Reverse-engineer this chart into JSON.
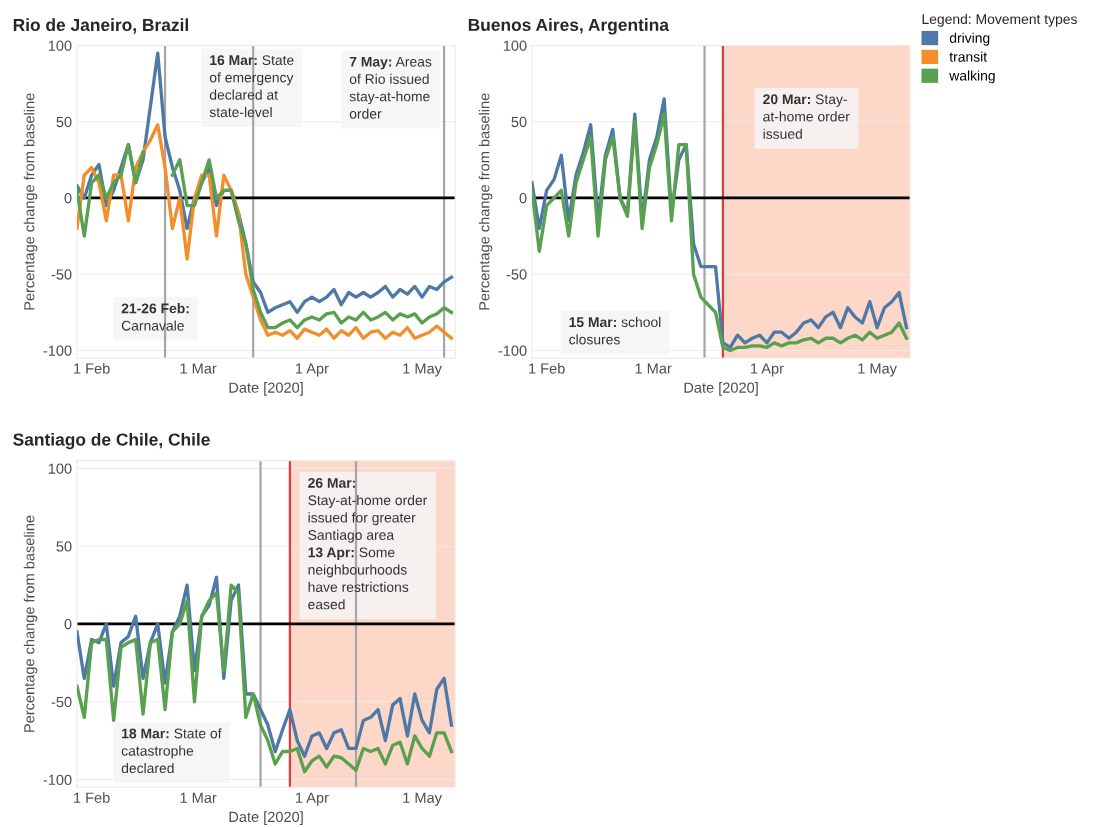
{
  "chart_data": [
    {
      "type": "line",
      "title": "Rio de Janeiro, Brazil",
      "xlabel": "Date [2020]",
      "ylabel": "Percentage change from baseline",
      "x": [
        "2020-01-28",
        "2020-01-30",
        "2020-02-01",
        "2020-02-03",
        "2020-02-05",
        "2020-02-07",
        "2020-02-09",
        "2020-02-11",
        "2020-02-13",
        "2020-02-15",
        "2020-02-17",
        "2020-02-19",
        "2020-02-21",
        "2020-02-23",
        "2020-02-25",
        "2020-02-27",
        "2020-02-29",
        "2020-03-02",
        "2020-03-04",
        "2020-03-06",
        "2020-03-08",
        "2020-03-10",
        "2020-03-12",
        "2020-03-14",
        "2020-03-16",
        "2020-03-18",
        "2020-03-20",
        "2020-03-22",
        "2020-03-24",
        "2020-03-26",
        "2020-03-28",
        "2020-03-30",
        "2020-04-01",
        "2020-04-03",
        "2020-04-05",
        "2020-04-07",
        "2020-04-09",
        "2020-04-11",
        "2020-04-13",
        "2020-04-15",
        "2020-04-17",
        "2020-04-19",
        "2020-04-21",
        "2020-04-23",
        "2020-04-25",
        "2020-04-27",
        "2020-04-29",
        "2020-05-01",
        "2020-05-03",
        "2020-05-05",
        "2020-05-07",
        "2020-05-09"
      ],
      "series": [
        {
          "name": "driving",
          "color": "#4e79a7",
          "values": [
            8,
            0,
            15,
            22,
            -5,
            5,
            20,
            35,
            10,
            25,
            60,
            95,
            40,
            20,
            5,
            -20,
            0,
            10,
            20,
            -5,
            5,
            5,
            -10,
            -30,
            -55,
            -62,
            -75,
            -72,
            -70,
            -68,
            -75,
            -68,
            -65,
            -68,
            -65,
            -60,
            -70,
            -62,
            -65,
            -62,
            -65,
            -62,
            -58,
            -65,
            -60,
            -63,
            -58,
            -65,
            -58,
            -60,
            -55,
            -52
          ]
        },
        {
          "name": "transit",
          "color": "#f28e2b",
          "values": [
            -20,
            15,
            20,
            10,
            -15,
            15,
            15,
            -15,
            20,
            30,
            38,
            48,
            20,
            -20,
            0,
            -40,
            0,
            15,
            15,
            -25,
            15,
            5,
            -10,
            -50,
            -65,
            -80,
            -90,
            -88,
            -90,
            -87,
            -92,
            -86,
            -88,
            -90,
            -86,
            -92,
            -87,
            -90,
            -85,
            -92,
            -88,
            -87,
            -92,
            -88,
            -90,
            -85,
            -92,
            -90,
            -88,
            -84,
            -88,
            -92
          ]
        },
        {
          "name": "walking",
          "color": "#59a14f",
          "values": [
            5,
            -25,
            10,
            15,
            0,
            10,
            15,
            35,
            10,
            30,
            null,
            null,
            null,
            15,
            25,
            -5,
            -5,
            10,
            25,
            0,
            5,
            5,
            -15,
            -30,
            -60,
            -75,
            -85,
            -85,
            -82,
            -80,
            -85,
            -80,
            -78,
            -80,
            -76,
            -75,
            -82,
            -78,
            -80,
            -75,
            -80,
            -78,
            -75,
            -80,
            -76,
            -78,
            -76,
            -82,
            -78,
            -76,
            -72,
            -75
          ]
        }
      ],
      "xlim": [
        "2020-01-28",
        "2020-05-10"
      ],
      "xticks": [
        {
          "value": "2020-02-01",
          "label": "1 Feb"
        },
        {
          "value": "2020-03-01",
          "label": "1 Mar"
        },
        {
          "value": "2020-04-01",
          "label": "1 Apr"
        },
        {
          "value": "2020-05-01",
          "label": "1 May"
        }
      ],
      "ylim": [
        -105,
        100
      ],
      "yticks": [
        -100,
        -50,
        0,
        50,
        100
      ],
      "grid": "y",
      "ref_lines": [
        {
          "axis": "x",
          "value": "2020-02-21",
          "color": "#a6a6a6"
        },
        {
          "axis": "x",
          "value": "2020-03-16",
          "color": "#a6a6a6"
        },
        {
          "axis": "x",
          "value": "2020-05-07",
          "color": "#a6a6a6"
        },
        {
          "axis": "y",
          "value": 0,
          "color": "#000000"
        }
      ],
      "legend": "top right",
      "legend_title": "Legend: Movement types",
      "annotations": [
        "16 Mar: State\nof emergency\ndeclared at\nstate-level",
        "7 May: Areas\nof Rio issued\nstay-at-home\norder",
        "21-26 Feb:\nCarnavale"
      ]
    },
    {
      "type": "line",
      "title": "Buenos Aires, Argentina",
      "xlabel": "Date [2020]",
      "ylabel": "Percentage change from baseline",
      "x": [
        "2020-01-28",
        "2020-01-30",
        "2020-02-01",
        "2020-02-03",
        "2020-02-05",
        "2020-02-07",
        "2020-02-09",
        "2020-02-11",
        "2020-02-13",
        "2020-02-15",
        "2020-02-17",
        "2020-02-19",
        "2020-02-21",
        "2020-02-23",
        "2020-02-25",
        "2020-02-27",
        "2020-02-29",
        "2020-03-02",
        "2020-03-04",
        "2020-03-06",
        "2020-03-08",
        "2020-03-10",
        "2020-03-12",
        "2020-03-14",
        "2020-03-16",
        "2020-03-18",
        "2020-03-20",
        "2020-03-22",
        "2020-03-24",
        "2020-03-26",
        "2020-03-28",
        "2020-03-30",
        "2020-04-01",
        "2020-04-03",
        "2020-04-05",
        "2020-04-07",
        "2020-04-09",
        "2020-04-11",
        "2020-04-13",
        "2020-04-15",
        "2020-04-17",
        "2020-04-19",
        "2020-04-21",
        "2020-04-23",
        "2020-04-25",
        "2020-04-27",
        "2020-04-29",
        "2020-05-01",
        "2020-05-03",
        "2020-05-05",
        "2020-05-07",
        "2020-05-09"
      ],
      "series": [
        {
          "name": "driving",
          "color": "#4e79a7",
          "values": [
            10,
            -20,
            5,
            12,
            28,
            -15,
            15,
            30,
            48,
            -15,
            28,
            45,
            0,
            -10,
            55,
            -15,
            25,
            40,
            65,
            -10,
            25,
            35,
            -30,
            -45,
            -45,
            -45,
            -95,
            -98,
            -90,
            -95,
            -92,
            -90,
            -95,
            -88,
            -88,
            -92,
            -88,
            -82,
            -80,
            -85,
            -78,
            -75,
            -85,
            -72,
            -78,
            -82,
            -68,
            -85,
            -72,
            -68,
            -62,
            -85
          ]
        },
        {
          "name": "walking",
          "color": "#59a14f",
          "values": [
            5,
            -35,
            -5,
            0,
            5,
            -25,
            10,
            25,
            40,
            -25,
            25,
            40,
            0,
            -12,
            50,
            -20,
            20,
            35,
            55,
            -15,
            35,
            35,
            -50,
            -65,
            -70,
            -75,
            -98,
            -100,
            -98,
            -98,
            -97,
            -97,
            -98,
            -95,
            -97,
            -95,
            -95,
            -93,
            -92,
            -95,
            -92,
            -92,
            -95,
            -92,
            -90,
            -93,
            -88,
            -92,
            -90,
            -88,
            -82,
            -92
          ]
        }
      ],
      "xlim": [
        "2020-01-28",
        "2020-05-10"
      ],
      "xticks": [
        {
          "value": "2020-02-01",
          "label": "1 Feb"
        },
        {
          "value": "2020-03-01",
          "label": "1 Mar"
        },
        {
          "value": "2020-04-01",
          "label": "1 Apr"
        },
        {
          "value": "2020-05-01",
          "label": "1 May"
        }
      ],
      "ylim": [
        -105,
        100
      ],
      "yticks": [
        -100,
        -50,
        0,
        50,
        100
      ],
      "grid": "y",
      "bands": [
        {
          "axis": "x",
          "from": "2020-03-20",
          "to": "2020-05-10",
          "color": "#fdd7c8"
        }
      ],
      "ref_lines": [
        {
          "axis": "x",
          "value": "2020-03-15",
          "color": "#a6a6a6"
        },
        {
          "axis": "x",
          "value": "2020-03-20",
          "color": "#e0393e"
        },
        {
          "axis": "y",
          "value": 0,
          "color": "#000000"
        }
      ],
      "annotations": [
        "20 Mar: Stay-\nat-home order\nissued",
        "15 Mar: school\nclosures"
      ]
    },
    {
      "type": "line",
      "title": "Santiago de Chile, Chile",
      "xlabel": "Date [2020]",
      "ylabel": "Percentage change from baseline",
      "x": [
        "2020-01-28",
        "2020-01-30",
        "2020-02-01",
        "2020-02-03",
        "2020-02-05",
        "2020-02-07",
        "2020-02-09",
        "2020-02-11",
        "2020-02-13",
        "2020-02-15",
        "2020-02-17",
        "2020-02-19",
        "2020-02-21",
        "2020-02-23",
        "2020-02-25",
        "2020-02-27",
        "2020-02-29",
        "2020-03-02",
        "2020-03-04",
        "2020-03-06",
        "2020-03-08",
        "2020-03-10",
        "2020-03-12",
        "2020-03-14",
        "2020-03-16",
        "2020-03-18",
        "2020-03-20",
        "2020-03-22",
        "2020-03-24",
        "2020-03-26",
        "2020-03-28",
        "2020-03-30",
        "2020-04-01",
        "2020-04-03",
        "2020-04-05",
        "2020-04-07",
        "2020-04-09",
        "2020-04-11",
        "2020-04-13",
        "2020-04-15",
        "2020-04-17",
        "2020-04-19",
        "2020-04-21",
        "2020-04-23",
        "2020-04-25",
        "2020-04-27",
        "2020-04-29",
        "2020-05-01",
        "2020-05-03",
        "2020-05-05",
        "2020-05-07",
        "2020-05-09"
      ],
      "series": [
        {
          "name": "driving",
          "color": "#4e79a7",
          "values": [
            -5,
            -35,
            -10,
            -12,
            0,
            -40,
            -12,
            -8,
            5,
            -35,
            -12,
            0,
            -38,
            -5,
            5,
            25,
            -30,
            5,
            12,
            30,
            -35,
            15,
            25,
            -45,
            -45,
            -55,
            -65,
            -82,
            -68,
            -55,
            -75,
            -85,
            -72,
            -70,
            -80,
            -70,
            -68,
            -80,
            -80,
            -62,
            -60,
            -55,
            -75,
            -52,
            -48,
            -72,
            -45,
            -62,
            -70,
            -42,
            -35,
            -65
          ]
        },
        {
          "name": "walking",
          "color": "#59a14f",
          "values": [
            -40,
            -60,
            -12,
            -10,
            -10,
            -62,
            -15,
            -12,
            -10,
            -58,
            -12,
            -10,
            -55,
            -5,
            0,
            15,
            -50,
            5,
            15,
            20,
            -30,
            25,
            20,
            -60,
            -45,
            -65,
            -75,
            -90,
            -82,
            -82,
            -80,
            -95,
            -88,
            -85,
            -92,
            -85,
            -86,
            -90,
            -94,
            -80,
            -82,
            -80,
            -90,
            -78,
            -76,
            -90,
            -72,
            -80,
            -85,
            -70,
            -70,
            -82
          ]
        }
      ],
      "xlim": [
        "2020-01-28",
        "2020-05-10"
      ],
      "xticks": [
        {
          "value": "2020-02-01",
          "label": "1 Feb"
        },
        {
          "value": "2020-03-01",
          "label": "1 Mar"
        },
        {
          "value": "2020-04-01",
          "label": "1 Apr"
        },
        {
          "value": "2020-05-01",
          "label": "1 May"
        }
      ],
      "ylim": [
        -105,
        105
      ],
      "yticks": [
        -100,
        -50,
        0,
        50,
        100
      ],
      "grid": "y",
      "bands": [
        {
          "axis": "x",
          "from": "2020-03-26",
          "to": "2020-05-10",
          "color": "#fdd7c8"
        }
      ],
      "ref_lines": [
        {
          "axis": "x",
          "value": "2020-03-18",
          "color": "#a6a6a6"
        },
        {
          "axis": "x",
          "value": "2020-03-26",
          "color": "#e0393e"
        },
        {
          "axis": "x",
          "value": "2020-04-13",
          "color": "#a6a6a6"
        },
        {
          "axis": "y",
          "value": 0,
          "color": "#000000"
        }
      ],
      "annotations": [
        "26 Mar:\nStay-at-home order\nissued for greater\nSantiago area\n13 Apr: Some\nneighbourhoods\nhave restrictions\neased",
        "18 Mar: State of\ncatastrophe\ndeclared"
      ]
    }
  ]
}
